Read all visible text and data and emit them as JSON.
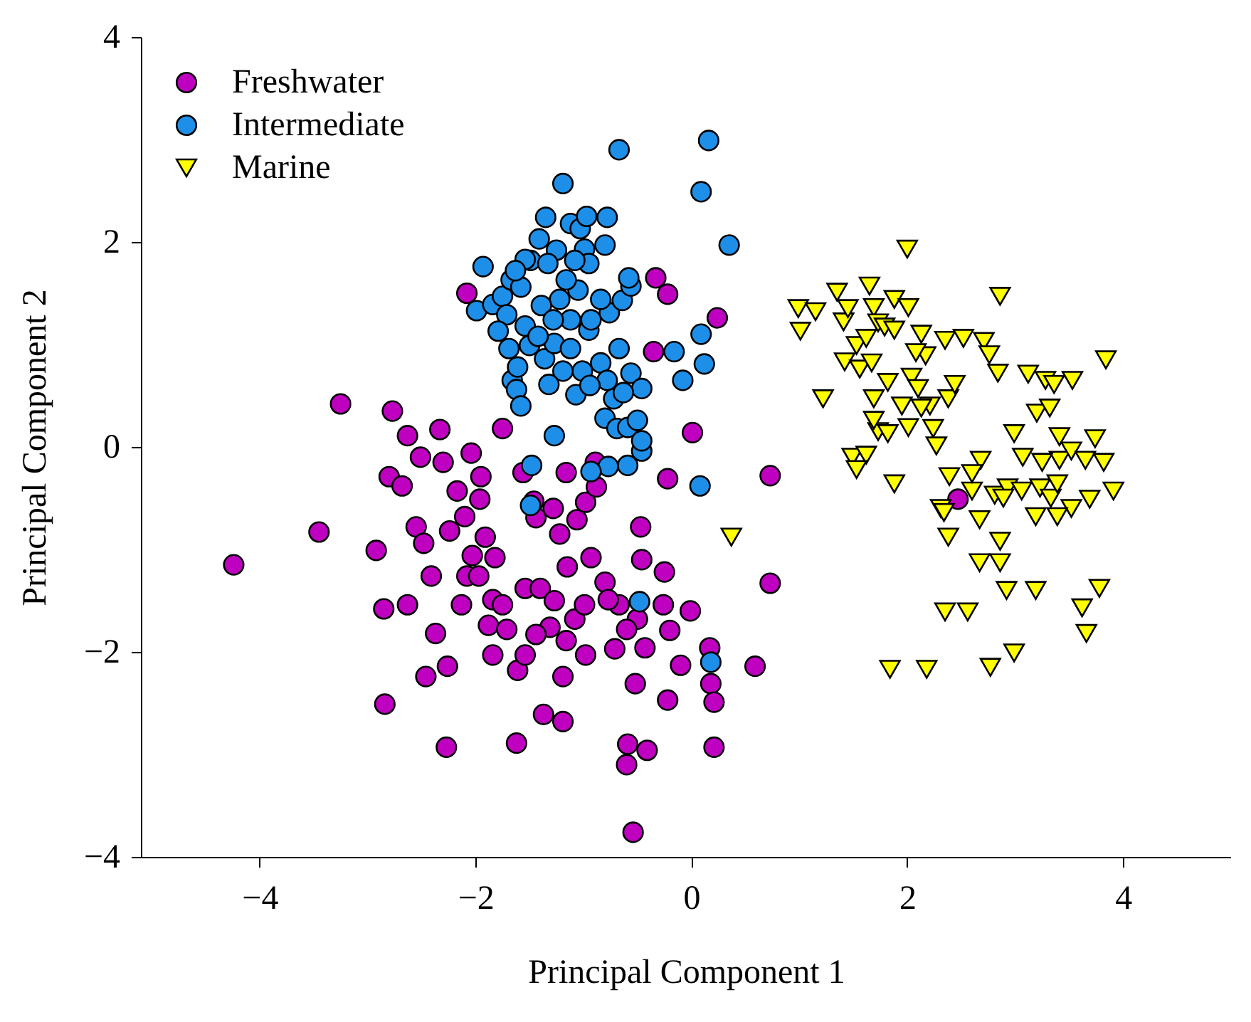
{
  "chart_data": {
    "type": "scatter",
    "xlabel": "Principal Component 1",
    "ylabel": "Principal Component 2",
    "xlim": [
      -5.1,
      5
    ],
    "ylim": [
      -4,
      4
    ],
    "xticks": [
      -4,
      -2,
      0,
      2,
      4
    ],
    "yticks": [
      -4,
      -2,
      0,
      2,
      4
    ],
    "grid": false,
    "legend": "top left",
    "series": [
      {
        "name": "Freshwater",
        "color": "#c000c0",
        "marker": "circle",
        "x": [
          -4.24,
          -3.25,
          -2.77,
          -3.45,
          -2.63,
          -2.51,
          -2.8,
          -2.68,
          -2.33,
          -2.3,
          -2.55,
          -2.48,
          -2.92,
          -2.85,
          -2.84,
          -2.41,
          -2.24,
          -2.1,
          -2.04,
          -1.95,
          -1.96,
          -2.03,
          -2.08,
          -2.13,
          -2.37,
          -2.46,
          -2.26,
          -2.27,
          -1.91,
          -1.97,
          -1.84,
          -1.88,
          -1.75,
          -1.71,
          -1.61,
          -1.54,
          -1.4,
          -1.27,
          -1.31,
          -1.44,
          -1.54,
          -1.84,
          -1.62,
          -1.37,
          -1.19,
          -1.19,
          -1.16,
          -1.08,
          -0.99,
          -1.15,
          -0.93,
          -1.44,
          -1.46,
          -1.28,
          -1.16,
          -1.06,
          -0.98,
          -0.88,
          -0.89,
          -0.8,
          -0.67,
          -0.5,
          -0.6,
          -0.71,
          -0.43,
          -0.26,
          -0.25,
          -0.46,
          -0.47,
          -0.2,
          -0.1,
          -0.22,
          -0.52,
          -0.59,
          -0.41,
          -0.54,
          -0.6,
          0.17,
          0.18,
          0.21,
          0.21,
          0.59,
          0.73,
          0.73,
          2.47,
          -0.33,
          -0.22,
          -0.35,
          0.01,
          -0.22,
          0.24,
          -2.08,
          -1.75,
          -1.56,
          -1.22,
          -0.77,
          -0.01,
          -2.17,
          -0.98,
          -1.82,
          -2.63
        ],
        "values": [
          -1.15,
          0.42,
          0.35,
          -0.83,
          0.11,
          -0.1,
          -0.29,
          -0.38,
          0.17,
          -0.15,
          -0.78,
          -0.94,
          -1.01,
          -1.58,
          -2.51,
          -1.26,
          -0.82,
          -0.68,
          -0.06,
          -0.29,
          -0.51,
          -1.06,
          -1.26,
          -1.54,
          -1.82,
          -2.24,
          -2.14,
          -2.93,
          -0.88,
          -1.26,
          -1.49,
          -1.74,
          -1.54,
          -1.78,
          -2.18,
          -1.38,
          -1.38,
          -1.5,
          -1.76,
          -1.83,
          -2.03,
          -2.03,
          -2.89,
          -2.61,
          -2.68,
          -2.24,
          -1.89,
          -1.68,
          -1.54,
          -1.17,
          -1.08,
          -0.69,
          -0.53,
          -0.6,
          -0.25,
          -0.71,
          -0.54,
          -0.39,
          -0.15,
          -1.32,
          -1.54,
          -1.68,
          -1.78,
          -1.97,
          -1.96,
          -1.54,
          -1.22,
          -1.1,
          -0.78,
          -1.79,
          -2.13,
          -2.47,
          -2.31,
          -2.9,
          -2.96,
          -3.76,
          -3.1,
          -1.96,
          -2.31,
          -2.49,
          -2.93,
          -2.14,
          -1.33,
          -0.28,
          -0.51,
          1.65,
          1.49,
          0.93,
          0.14,
          -0.31,
          1.26,
          1.5,
          0.18,
          -0.25,
          -0.85,
          -1.49,
          -1.6,
          -0.43,
          -2.03,
          -1.08,
          -1.54
        ]
      },
      {
        "name": "Intermediate",
        "color": "#1e8fe8",
        "marker": "circle",
        "x": [
          -1.93,
          -1.99,
          -1.84,
          -1.75,
          -1.67,
          -1.58,
          -1.49,
          -1.41,
          -1.25,
          -1.19,
          -1.12,
          -1.03,
          -0.99,
          -0.95,
          -1.05,
          -1.22,
          -1.39,
          -1.54,
          -1.69,
          -1.66,
          -1.62,
          -1.58,
          -1.5,
          -1.36,
          -1.27,
          -1.12,
          -0.95,
          -0.84,
          -0.78,
          -0.72,
          -0.8,
          -0.69,
          -0.59,
          -0.5,
          -0.46,
          -0.59,
          -0.77,
          -0.93,
          -0.67,
          -0.56,
          -0.46,
          -0.76,
          -0.64,
          -0.56,
          -0.84,
          -0.93,
          -1.12,
          -1.28,
          -1.42,
          -1.33,
          -1.16,
          -1.08,
          -0.8,
          -0.78,
          -0.16,
          -0.08,
          0.09,
          0.09,
          0.16,
          0.35,
          0.12,
          -0.58,
          -0.67,
          -1.27,
          -1.48,
          -1.49,
          -0.48,
          0.18,
          0.08,
          -1.01,
          -1.19,
          -1.32,
          -1.07,
          -0.94,
          -0.63,
          -1.54,
          -1.63,
          -1.35,
          -0.97,
          -1.71,
          -1.79,
          -0.46,
          -1.61
        ],
        "values": [
          1.76,
          1.33,
          1.39,
          1.47,
          1.63,
          1.56,
          1.82,
          2.03,
          1.92,
          2.57,
          2.18,
          2.13,
          1.93,
          1.79,
          1.53,
          1.44,
          1.38,
          1.18,
          0.96,
          0.65,
          0.56,
          0.4,
          0.99,
          0.86,
          1.01,
          0.96,
          1.14,
          0.82,
          0.65,
          0.47,
          0.28,
          0.18,
          0.19,
          0.26,
          -0.04,
          -0.18,
          -0.19,
          -0.24,
          0.96,
          0.72,
          0.57,
          1.31,
          1.43,
          1.57,
          1.44,
          1.24,
          1.24,
          1.24,
          1.08,
          1.79,
          1.63,
          1.82,
          1.97,
          2.24,
          0.93,
          0.65,
          1.1,
          2.49,
          2.99,
          1.97,
          0.81,
          1.65,
          2.9,
          0.11,
          -0.18,
          -0.57,
          -1.51,
          -2.1,
          -0.38,
          0.74,
          0.74,
          0.61,
          0.51,
          0.6,
          0.53,
          1.83,
          1.72,
          2.24,
          2.25,
          1.29,
          1.13,
          0.06,
          0.78
        ]
      },
      {
        "name": "Marine",
        "color": "#ffff00",
        "marker": "triangle-down",
        "x": [
          0.37,
          0.99,
          1.01,
          1.15,
          1.22,
          1.35,
          1.41,
          1.42,
          1.45,
          1.53,
          1.56,
          1.62,
          1.65,
          1.69,
          1.73,
          1.67,
          1.69,
          1.79,
          1.88,
          1.88,
          2.01,
          2.0,
          2.13,
          2.17,
          2.04,
          2.1,
          2.21,
          2.38,
          2.44,
          2.35,
          2.52,
          2.71,
          2.86,
          2.76,
          2.84,
          1.82,
          1.73,
          1.49,
          1.62,
          1.69,
          1.82,
          1.95,
          2.01,
          2.13,
          2.24,
          2.27,
          2.39,
          2.31,
          2.6,
          2.67,
          2.81,
          2.93,
          3.06,
          3.19,
          3.23,
          3.07,
          2.99,
          3.2,
          3.28,
          3.36,
          3.32,
          3.41,
          3.41,
          3.52,
          3.65,
          3.74,
          3.82,
          3.91,
          3.69,
          3.52,
          3.39,
          3.33,
          3.53,
          3.84,
          3.25,
          1.53,
          1.88,
          2.38,
          2.67,
          2.56,
          2.92,
          3.19,
          2.99,
          2.77,
          3.78,
          3.62,
          3.66,
          2.18,
          2.35,
          1.84,
          2.86,
          2.34,
          2.68,
          2.89,
          3.39,
          2.86,
          3.12,
          2.6,
          2.08
        ],
        "values": [
          -0.88,
          1.35,
          1.13,
          1.32,
          0.47,
          1.51,
          1.22,
          0.83,
          1.35,
          0.99,
          0.76,
          1.06,
          1.57,
          1.36,
          1.21,
          0.82,
          0.47,
          1.17,
          1.44,
          1.14,
          1.36,
          1.93,
          1.1,
          0.89,
          0.68,
          0.57,
          0.4,
          0.47,
          0.61,
          1.04,
          1.06,
          1.03,
          1.47,
          0.9,
          0.72,
          0.63,
          0.15,
          -0.1,
          -0.08,
          0.26,
          0.13,
          0.4,
          0.19,
          0.38,
          0.18,
          0.01,
          -0.29,
          -0.6,
          -0.43,
          -0.71,
          -0.47,
          -0.4,
          -0.43,
          -0.68,
          -0.4,
          -0.1,
          0.13,
          0.33,
          0.65,
          0.61,
          0.38,
          0.1,
          -0.13,
          -0.04,
          -0.13,
          0.08,
          -0.15,
          -0.43,
          -0.51,
          -0.6,
          -0.68,
          -0.5,
          0.65,
          0.85,
          -0.15,
          -0.22,
          -0.36,
          -0.88,
          -1.13,
          -1.61,
          -1.4,
          -1.4,
          -2.01,
          -2.15,
          -1.38,
          -1.57,
          -1.82,
          -2.17,
          -1.61,
          -2.17,
          -1.13,
          -0.64,
          -0.13,
          -0.5,
          -0.36,
          -0.92,
          0.71,
          -0.26,
          0.92
        ]
      }
    ]
  }
}
